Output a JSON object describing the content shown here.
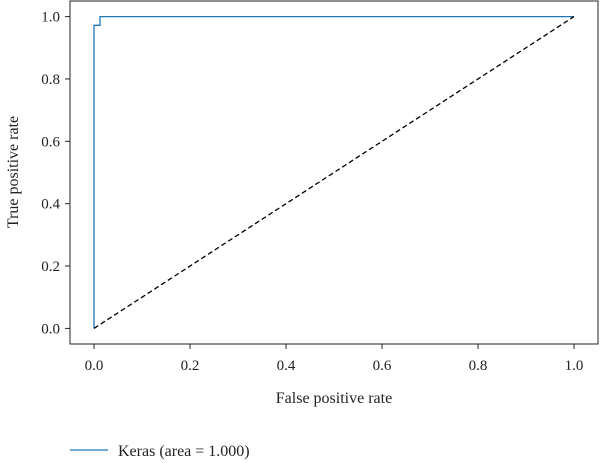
{
  "chart_data": {
    "type": "line",
    "xlabel": "False positive rate",
    "ylabel": "True positive rate",
    "xlim": [
      -0.05,
      1.05
    ],
    "ylim": [
      -0.05,
      1.05
    ],
    "xticks": [
      0.0,
      0.2,
      0.4,
      0.6,
      0.8,
      1.0
    ],
    "xtick_labels": [
      "0.0",
      "0.2",
      "0.4",
      "0.6",
      "0.8",
      "1.0"
    ],
    "yticks": [
      0.0,
      0.2,
      0.4,
      0.6,
      0.8,
      1.0
    ],
    "ytick_labels": [
      "0.0",
      "0.2",
      "0.4",
      "0.6",
      "0.8",
      "1.0"
    ],
    "grid": false,
    "legend_position": "below",
    "series": [
      {
        "name": "Keras (area = 1.000)",
        "color": "#1f77b4",
        "style": "solid",
        "x": [
          0.0,
          0.0,
          0.0,
          0.0125,
          0.0125,
          1.0
        ],
        "y": [
          0.0,
          0.5,
          0.972,
          0.972,
          1.0,
          1.0
        ]
      },
      {
        "color": "#000000",
        "style": "dashed",
        "x": [
          0.0,
          1.0
        ],
        "y": [
          0.0,
          1.0
        ]
      }
    ]
  }
}
